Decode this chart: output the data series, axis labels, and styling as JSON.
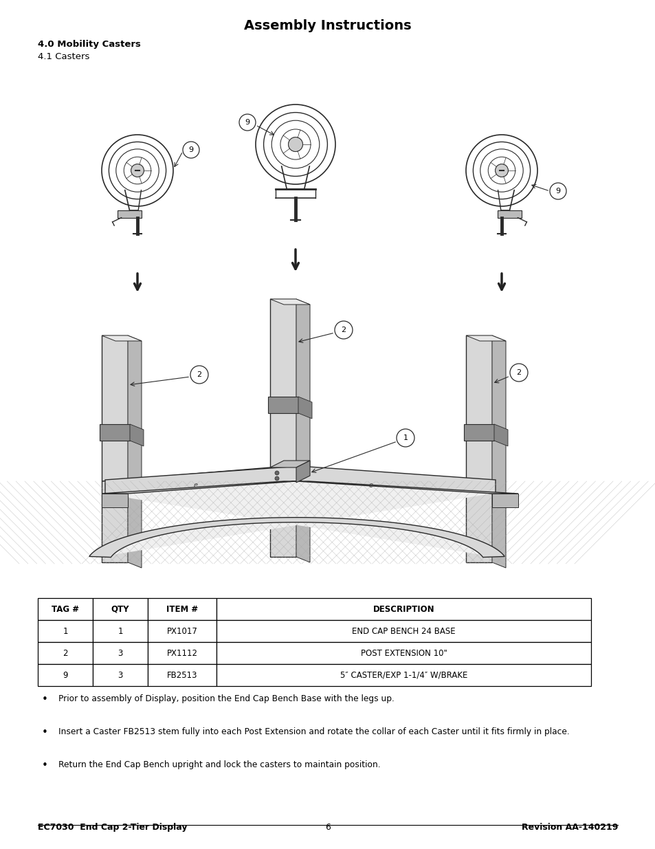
{
  "title": "Assembly Instructions",
  "section_bold": "4.0 Mobility Casters",
  "section_normal": "4.1 Casters",
  "table_headers": [
    "TAG #",
    "QTY",
    "ITEM #",
    "DESCRIPTION"
  ],
  "table_rows": [
    [
      "1",
      "1",
      "PX1017",
      "END CAP BENCH 24 BASE"
    ],
    [
      "2",
      "3",
      "PX1112",
      "POST EXTENSION 10\""
    ],
    [
      "9",
      "3",
      "FB2513",
      "5″ CASTER/EXP 1-1/4″ W/BRAKE"
    ]
  ],
  "bullet_points": [
    "Prior to assembly of Display, position the End Cap Bench Base with the legs up.",
    "Insert a Caster FB2513 stem fully into each Post Extension and rotate the collar of each Caster until it fits firmly in place.",
    "Return the End Cap Bench upright and lock the casters to maintain position."
  ],
  "footer_left": "EC7030  End Cap 2-Tier Display",
  "footer_center": "6",
  "footer_right": "Revision AA-140219",
  "bg_color": "#ffffff",
  "text_color": "#000000",
  "fig_width": 9.54,
  "fig_height": 12.35,
  "dpi": 100
}
